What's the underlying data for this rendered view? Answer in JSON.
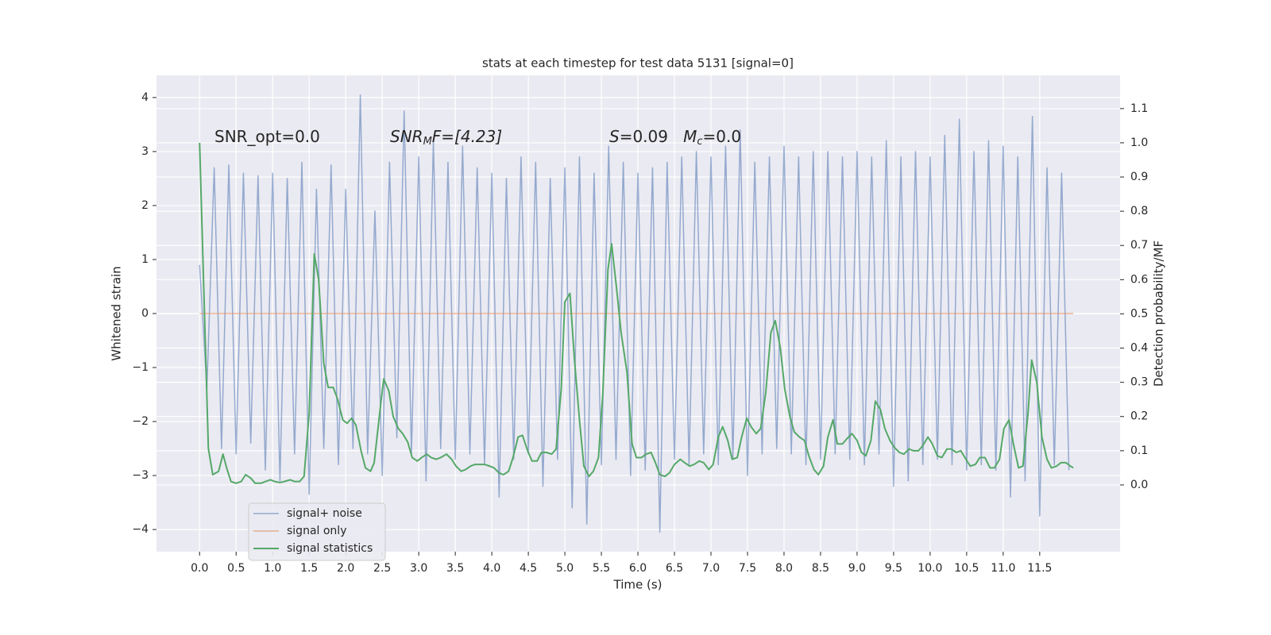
{
  "chart_data": {
    "type": "line",
    "title": "stats at each timestep for test data 5131 [signal=0]",
    "xlabel": "Time (s)",
    "ylabel": "Whitened strain",
    "y2label": "Detection probability/MF",
    "annotations": [
      [
        "SNR_opt=0.0"
      ],
      [
        "SNR",
        "M",
        "F=[4.23]"
      ],
      [
        "S",
        "=0.09   ",
        "M",
        "c",
        "=0.0"
      ]
    ],
    "xlim": [
      -0.59,
      12.6
    ],
    "ylim": [
      -4.41,
      4.41
    ],
    "y2lim": [
      -0.195,
      1.197
    ],
    "xticks": [
      {
        "value": 0,
        "label": "0.0"
      },
      0.5,
      {
        "value": 1,
        "label": "1.0"
      },
      1.5,
      {
        "value": 2,
        "label": "2.0"
      },
      2.5,
      {
        "value": 3,
        "label": "3.0"
      },
      3.5,
      {
        "value": 4,
        "label": "4.0"
      },
      4.5,
      {
        "value": 5,
        "label": "5.0"
      },
      5.5,
      {
        "value": 6,
        "label": "6.0"
      },
      6.5,
      {
        "value": 7,
        "label": "7.0"
      },
      7.5,
      {
        "value": 8,
        "label": "8.0"
      },
      8.5,
      {
        "value": 9,
        "label": "9.0"
      },
      9.5,
      {
        "value": 10,
        "label": "10.0"
      },
      10.5,
      {
        "value": 11,
        "label": "11.0"
      },
      11.5
    ],
    "yticks": [
      {
        "value": -4,
        "label": "−4"
      },
      {
        "value": -3,
        "label": "−3"
      },
      {
        "value": -2,
        "label": "−2"
      },
      {
        "value": -1,
        "label": "−1"
      },
      0,
      1,
      2,
      3,
      4
    ],
    "y2ticks": [
      {
        "value": 0,
        "label": "0.0"
      },
      0.1,
      0.2,
      0.3,
      0.4,
      0.5,
      0.6,
      0.7,
      0.8,
      0.9,
      {
        "value": 1,
        "label": "1.0"
      },
      1.1
    ],
    "grid": true,
    "legend": "lower left",
    "series": [
      {
        "name": "signal+ noise",
        "color": "#4c72b0",
        "x": [
          0,
          0.1,
          0.2,
          0.3,
          0.4,
          0.5,
          0.6,
          0.7,
          0.8,
          0.9,
          1,
          1.1,
          1.2,
          1.3,
          1.4,
          1.5,
          1.6,
          1.7,
          1.8,
          1.9,
          2,
          2.1,
          2.2,
          2.3,
          2.4,
          2.5,
          2.6,
          2.7,
          2.8,
          2.9,
          3,
          3.1,
          3.2,
          3.3,
          3.4,
          3.5,
          3.6,
          3.7,
          3.8,
          3.9,
          4,
          4.1,
          4.2,
          4.3,
          4.4,
          4.5,
          4.6,
          4.7,
          4.8,
          4.9,
          5,
          5.1,
          5.2,
          5.3,
          5.4,
          5.5,
          5.6,
          5.7,
          5.8,
          5.9,
          6,
          6.1,
          6.2,
          6.3,
          6.4,
          6.5,
          6.6,
          6.7,
          6.8,
          6.9,
          7,
          7.1,
          7.2,
          7.3,
          7.4,
          7.5,
          7.6,
          7.7,
          7.8,
          7.9,
          8,
          8.1,
          8.2,
          8.3,
          8.4,
          8.5,
          8.6,
          8.7,
          8.8,
          8.9,
          9,
          9.1,
          9.2,
          9.3,
          9.4,
          9.5,
          9.6,
          9.7,
          9.8,
          9.9,
          10,
          10.1,
          10.2,
          10.3,
          10.4,
          10.5,
          10.6,
          10.7,
          10.8,
          10.9,
          11,
          11.1,
          11.2,
          11.3,
          11.4,
          11.5,
          11.6,
          11.7,
          11.8,
          11.9
        ],
        "values": [
          0.9,
          -1.4,
          2.7,
          -2.5,
          2.75,
          -2.6,
          2.6,
          -2.4,
          2.55,
          -2.9,
          2.6,
          -3.1,
          2.5,
          -2.6,
          2.8,
          -3.35,
          2.3,
          -2.5,
          2.75,
          -2.8,
          2.3,
          -2.5,
          4.05,
          -2.6,
          1.9,
          -3.0,
          2.8,
          -2.3,
          3.75,
          -2.6,
          2.9,
          -3.1,
          3.2,
          -2.5,
          2.8,
          -2.7,
          3.1,
          -2.6,
          2.7,
          -2.8,
          2.6,
          -3.4,
          2.5,
          -2.7,
          2.9,
          -2.6,
          2.8,
          -3.2,
          2.5,
          -2.7,
          2.7,
          -3.6,
          2.9,
          -3.9,
          2.6,
          -2.8,
          3.1,
          -2.7,
          2.8,
          -3.0,
          2.6,
          -2.9,
          2.7,
          -4.05,
          2.8,
          -2.7,
          2.9,
          -2.8,
          3.0,
          -2.6,
          2.9,
          -2.8,
          3.1,
          -2.7,
          3.4,
          -3.0,
          2.8,
          -2.6,
          2.9,
          -2.5,
          3.1,
          -2.6,
          2.9,
          -2.8,
          3.0,
          -2.7,
          3.0,
          -2.6,
          2.9,
          -2.7,
          3.0,
          -2.8,
          2.9,
          -2.6,
          3.2,
          -3.2,
          2.9,
          -3.1,
          3.0,
          -2.8,
          2.9,
          -2.7,
          3.3,
          -2.8,
          3.6,
          -2.9,
          3.0,
          -2.8,
          3.2,
          -2.9,
          3.1,
          -3.4,
          2.9,
          -3.1,
          3.65,
          -3.75,
          2.7,
          -2.8,
          2.6,
          -2.9
        ]
      },
      {
        "name": "signal only",
        "color": "#dd8452",
        "x": [
          0,
          11.96
        ],
        "values": [
          0,
          0
        ]
      },
      {
        "name": "signal statistics",
        "color": "#55a868",
        "axis": "y2",
        "x": [
          0,
          0.12,
          0.18,
          0.26,
          0.32,
          0.37,
          0.43,
          0.5,
          0.57,
          0.63,
          0.7,
          0.76,
          0.84,
          0.9,
          0.97,
          1.03,
          1.1,
          1.16,
          1.24,
          1.3,
          1.37,
          1.43,
          1.5,
          1.57,
          1.63,
          1.7,
          1.76,
          1.83,
          1.89,
          1.96,
          2.02,
          2.08,
          2.14,
          2.21,
          2.27,
          2.34,
          2.39,
          2.46,
          2.52,
          2.59,
          2.65,
          2.72,
          2.78,
          2.85,
          2.91,
          2.98,
          3.04,
          3.11,
          3.17,
          3.24,
          3.3,
          3.38,
          3.45,
          3.51,
          3.58,
          3.64,
          3.71,
          3.77,
          3.84,
          3.9,
          3.97,
          4.03,
          4.1,
          4.16,
          4.23,
          4.29,
          4.36,
          4.42,
          4.49,
          4.55,
          4.62,
          4.68,
          4.75,
          4.82,
          4.88,
          4.95,
          5.0,
          5.07,
          5.13,
          5.2,
          5.26,
          5.33,
          5.39,
          5.46,
          5.52,
          5.59,
          5.64,
          5.71,
          5.77,
          5.85,
          5.92,
          5.98,
          6.05,
          6.11,
          6.18,
          6.24,
          6.3,
          6.37,
          6.43,
          6.5,
          6.58,
          6.64,
          6.71,
          6.77,
          6.84,
          6.9,
          6.97,
          7.03,
          7.1,
          7.16,
          7.23,
          7.29,
          7.36,
          7.42,
          7.49,
          7.55,
          7.62,
          7.68,
          7.75,
          7.82,
          7.88,
          7.95,
          8.01,
          8.08,
          8.14,
          8.21,
          8.28,
          8.34,
          8.41,
          8.47,
          8.54,
          8.6,
          8.67,
          8.73,
          8.8,
          8.86,
          8.93,
          9.0,
          9.06,
          9.12,
          9.19,
          9.25,
          9.32,
          9.38,
          9.45,
          9.51,
          9.58,
          9.64,
          9.71,
          9.77,
          9.84,
          9.9,
          9.97,
          10.03,
          10.1,
          10.16,
          10.23,
          10.29,
          10.36,
          10.42,
          10.49,
          10.55,
          10.62,
          10.68,
          10.75,
          10.82,
          10.88,
          10.95,
          11.01,
          11.08,
          11.14,
          11.21,
          11.27,
          11.34,
          11.39,
          11.46,
          11.53,
          11.6,
          11.66,
          11.73,
          11.79,
          11.86,
          11.92,
          11.96
        ],
        "values": [
          1.0,
          0.107,
          0.03,
          0.04,
          0.09,
          0.05,
          0.01,
          0.005,
          0.01,
          0.03,
          0.02,
          0.005,
          0.005,
          0.01,
          0.015,
          0.01,
          0.007,
          0.01,
          0.015,
          0.01,
          0.01,
          0.025,
          0.21,
          0.675,
          0.6,
          0.355,
          0.285,
          0.285,
          0.25,
          0.19,
          0.18,
          0.195,
          0.175,
          0.1,
          0.05,
          0.04,
          0.065,
          0.2,
          0.31,
          0.275,
          0.2,
          0.165,
          0.15,
          0.125,
          0.08,
          0.07,
          0.08,
          0.09,
          0.08,
          0.075,
          0.08,
          0.09,
          0.075,
          0.055,
          0.04,
          0.045,
          0.055,
          0.06,
          0.06,
          0.06,
          0.055,
          0.05,
          0.035,
          0.03,
          0.04,
          0.08,
          0.14,
          0.145,
          0.1,
          0.07,
          0.07,
          0.095,
          0.095,
          0.09,
          0.105,
          0.28,
          0.535,
          0.56,
          0.37,
          0.19,
          0.055,
          0.025,
          0.04,
          0.08,
          0.27,
          0.63,
          0.705,
          0.57,
          0.445,
          0.33,
          0.12,
          0.08,
          0.08,
          0.09,
          0.095,
          0.065,
          0.03,
          0.025,
          0.035,
          0.06,
          0.075,
          0.065,
          0.055,
          0.06,
          0.07,
          0.065,
          0.045,
          0.06,
          0.14,
          0.17,
          0.13,
          0.075,
          0.08,
          0.14,
          0.195,
          0.17,
          0.15,
          0.165,
          0.27,
          0.445,
          0.48,
          0.4,
          0.28,
          0.2,
          0.155,
          0.14,
          0.13,
          0.085,
          0.045,
          0.03,
          0.055,
          0.14,
          0.19,
          0.12,
          0.12,
          0.135,
          0.15,
          0.13,
          0.095,
          0.085,
          0.13,
          0.245,
          0.22,
          0.165,
          0.13,
          0.11,
          0.095,
          0.09,
          0.105,
          0.1,
          0.1,
          0.115,
          0.14,
          0.12,
          0.085,
          0.08,
          0.105,
          0.105,
          0.095,
          0.1,
          0.075,
          0.055,
          0.06,
          0.08,
          0.08,
          0.05,
          0.05,
          0.075,
          0.165,
          0.19,
          0.12,
          0.05,
          0.055,
          0.21,
          0.365,
          0.3,
          0.14,
          0.075,
          0.05,
          0.055,
          0.065,
          0.065,
          0.055,
          0.05
        ]
      }
    ]
  }
}
